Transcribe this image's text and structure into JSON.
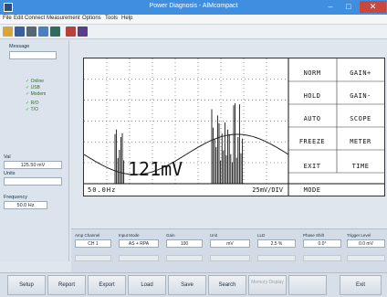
{
  "window": {
    "title": "Power Diagnosis - AlMcompact"
  },
  "menu": [
    "File",
    "Edit",
    "Connect",
    "Measurement",
    "Options",
    "Tools",
    "Help"
  ],
  "toolbar": [
    {
      "icon": "open-folder-icon",
      "color": "#d9a53a"
    },
    {
      "icon": "save-icon",
      "color": "#3a5f9a"
    },
    {
      "icon": "print-icon",
      "color": "#556677"
    },
    {
      "icon": "pointer-icon",
      "color": "#4a80c0"
    },
    {
      "icon": "chip-icon",
      "color": "#2f6b5e"
    },
    {
      "icon": "waveform-icon",
      "color": "#b84040"
    },
    {
      "icon": "scope-icon",
      "color": "#5a3d8a"
    }
  ],
  "left": {
    "message_label": "Message",
    "message_value": "",
    "status": [
      "Online",
      "USB",
      "Modem",
      "R/O",
      "T/O"
    ],
    "value_label": "Val",
    "value": "125.50 mV",
    "units_label": "Units",
    "units_value": "",
    "frequency_label": "Frequency",
    "frequency_value": "50.0 Hz"
  },
  "scope": {
    "readout": "121mV",
    "frequency": "50.0Hz",
    "division": "25mV/DIV",
    "buttons_left": [
      "NORM",
      "HOLD",
      "AUTO",
      "FREEZE",
      "EXIT",
      "MODE"
    ],
    "buttons_right": [
      "GAIN+",
      "GAIN-",
      "SCOPE",
      "METER",
      "TIME"
    ]
  },
  "params": {
    "labels": [
      "Amp Channel",
      "Input Mode",
      "Gain",
      "Unit",
      "LLD",
      "Phase Shift",
      "Trigger Level"
    ],
    "values": [
      "CH 1",
      "AS + RPA",
      "100",
      "mV",
      "2.5  %",
      "0.0°",
      "0.0  mV"
    ],
    "dim_labels": [
      "",
      "",
      "",
      "",
      "",
      "",
      ""
    ],
    "dim_values": [
      "",
      "",
      "",
      "",
      "",
      "",
      ""
    ]
  },
  "bottom": [
    "Setup",
    "Report",
    "Export",
    "Load",
    "Save",
    "Search",
    "Memory Display",
    "",
    "Exit"
  ],
  "colors": {
    "titlebar": "#3f8ee0",
    "close": "#c9473c",
    "status_led": "#35a035"
  }
}
